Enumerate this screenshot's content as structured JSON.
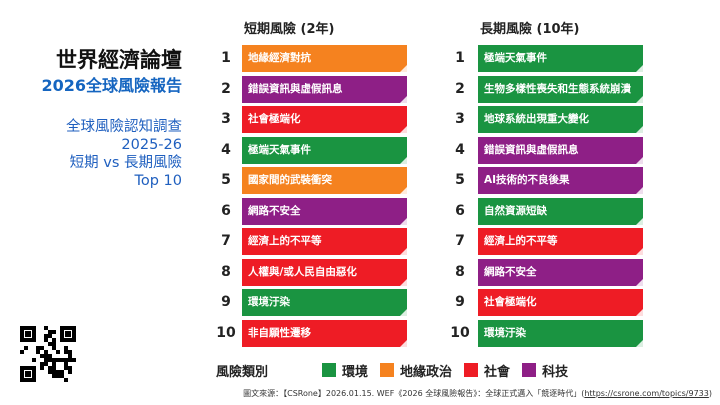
{
  "title": {
    "main": "世界經濟論壇",
    "sub": "2026全球風險報告"
  },
  "survey": {
    "line1": "全球風險認知調查",
    "line2": "2025-26",
    "line3": "短期 vs 長期風險",
    "line4": "Top 10"
  },
  "colors": {
    "環境": "#1a9441",
    "地緣政治": "#f5821f",
    "社會": "#ee1c25",
    "科技": "#8e1f86"
  },
  "short_term": {
    "heading": "短期風險 (2年)",
    "items": [
      {
        "rank": "1",
        "label": "地緣經濟對抗",
        "category": "地緣政治"
      },
      {
        "rank": "2",
        "label": "錯誤資訊與虛假訊息",
        "category": "科技"
      },
      {
        "rank": "3",
        "label": "社會極端化",
        "category": "社會"
      },
      {
        "rank": "4",
        "label": "極端天氣事件",
        "category": "環境"
      },
      {
        "rank": "5",
        "label": "國家間的武裝衝突",
        "category": "地緣政治"
      },
      {
        "rank": "6",
        "label": "網路不安全",
        "category": "科技"
      },
      {
        "rank": "7",
        "label": "經濟上的不平等",
        "category": "社會"
      },
      {
        "rank": "8",
        "label": "人權與/或人民自由惡化",
        "category": "社會"
      },
      {
        "rank": "9",
        "label": "環境汙染",
        "category": "環境"
      },
      {
        "rank": "10",
        "label": "非自願性遷移",
        "category": "社會"
      }
    ]
  },
  "long_term": {
    "heading": "長期風險 (10年)",
    "items": [
      {
        "rank": "1",
        "label": "極端天氣事件",
        "category": "環境"
      },
      {
        "rank": "2",
        "label": "生物多樣性喪失和生態系統崩潰",
        "category": "環境"
      },
      {
        "rank": "3",
        "label": "地球系統出現重大變化",
        "category": "環境"
      },
      {
        "rank": "4",
        "label": "錯誤資訊與虛假訊息",
        "category": "科技"
      },
      {
        "rank": "5",
        "label": "AI技術的不良後果",
        "category": "科技"
      },
      {
        "rank": "6",
        "label": "自然資源短缺",
        "category": "環境"
      },
      {
        "rank": "7",
        "label": "經濟上的不平等",
        "category": "社會"
      },
      {
        "rank": "8",
        "label": "網路不安全",
        "category": "科技"
      },
      {
        "rank": "9",
        "label": "社會極端化",
        "category": "社會"
      },
      {
        "rank": "10",
        "label": "環境汙染",
        "category": "環境"
      }
    ]
  },
  "legend": {
    "title": "風險類別",
    "items": [
      "環境",
      "地緣政治",
      "社會",
      "科技"
    ]
  },
  "source": {
    "prefix": "圖文來源：【CSRone】2026.01.15. WEF《2026 全球風險報告》：全球正式邁入「競逐時代」(",
    "link": "https://csrone.com/topics/9733",
    "suffix": ")"
  }
}
